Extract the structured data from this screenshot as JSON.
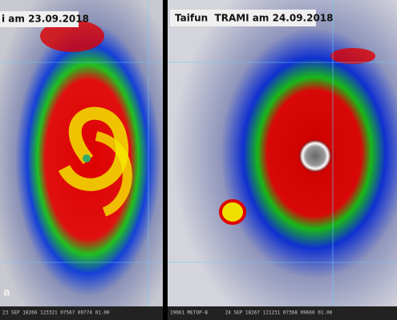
{
  "panels": [
    {
      "caption": "i am 23.09.2018",
      "footer": "23 SEP 18266 123321 07567 09774 01.00",
      "corner": "a"
    },
    {
      "caption": "Taifun  TRAMI am 24.09.2018",
      "footer": "19061 METOP-B      24 SEP 18267 121231 07368 09660 01.00"
    }
  ]
}
